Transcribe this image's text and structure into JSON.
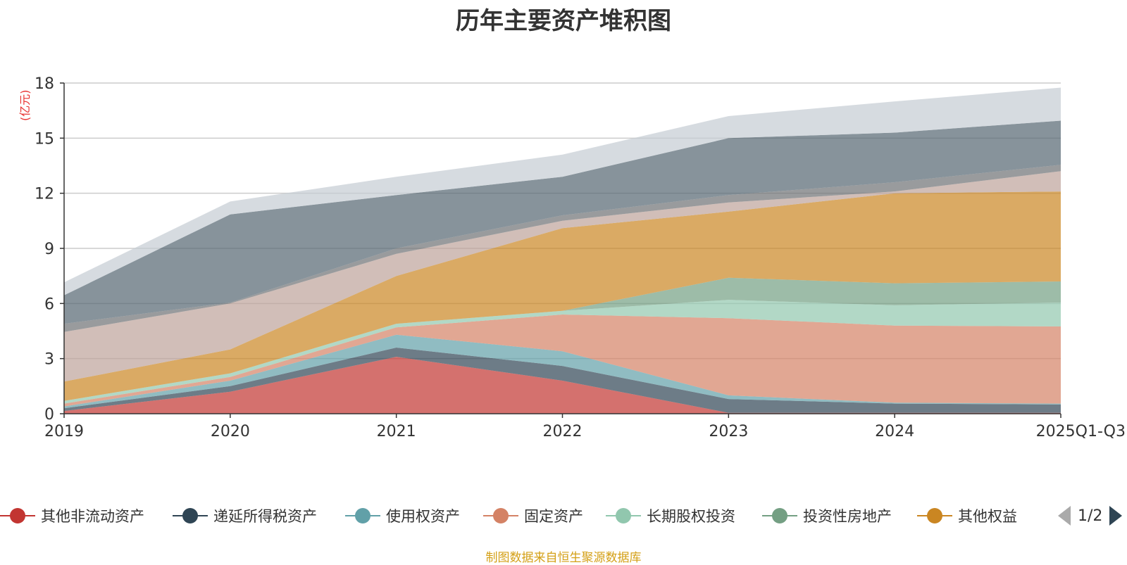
{
  "chart_data": {
    "type": "area",
    "stacked": true,
    "title": "历年主要资产堆积图",
    "unit_label": "(亿元)",
    "categories": [
      "2019",
      "2020",
      "2021",
      "2022",
      "2023",
      "2024",
      "2025Q1-Q3"
    ],
    "ylim": [
      0,
      18
    ],
    "yticks": [
      0,
      3,
      6,
      9,
      12,
      15,
      18
    ],
    "grid": true,
    "series": [
      {
        "name": "其他非流动资产",
        "color": "#c23531",
        "values": [
          0.15,
          1.2,
          3.1,
          1.8,
          0.05,
          0.05,
          0.05
        ],
        "legend": true
      },
      {
        "name": "递延所得税资产",
        "color": "#2f4554",
        "values": [
          0.15,
          0.3,
          0.5,
          0.8,
          0.75,
          0.5,
          0.45
        ],
        "legend": true
      },
      {
        "name": "使用权资产",
        "color": "#61a0a8",
        "values": [
          0.1,
          0.3,
          0.7,
          0.8,
          0.2,
          0.05,
          0.05
        ],
        "legend": true
      },
      {
        "name": "固定资产",
        "color": "#d48265",
        "values": [
          0.15,
          0.2,
          0.4,
          2.0,
          4.2,
          4.2,
          4.2
        ],
        "legend": true
      },
      {
        "name": "长期股权投资",
        "color": "#91c7ae",
        "values": [
          0.15,
          0.2,
          0.2,
          0.2,
          1.0,
          1.1,
          1.3
        ],
        "legend": true
      },
      {
        "name": "投资性房地产",
        "color": "#749f83",
        "values": [
          0.0,
          0.0,
          0.0,
          0.0,
          1.2,
          1.2,
          1.15
        ],
        "legend": true
      },
      {
        "name": "其他权益",
        "color": "#ca8622",
        "values": [
          1.05,
          1.3,
          2.6,
          4.5,
          3.6,
          4.9,
          4.9
        ],
        "legend": true
      },
      {
        "name": "",
        "color": "#bda29a",
        "values": [
          2.7,
          2.5,
          1.2,
          0.4,
          0.5,
          0.1,
          1.1
        ],
        "legend": false
      },
      {
        "name": "",
        "color": "#6e7074",
        "values": [
          0.45,
          0.05,
          0.3,
          0.3,
          0.4,
          0.5,
          0.35
        ],
        "legend": false
      },
      {
        "name": "",
        "color": "#546570",
        "values": [
          1.55,
          4.8,
          2.9,
          2.1,
          3.1,
          2.7,
          2.4
        ],
        "legend": false
      },
      {
        "name": "",
        "color": "#c4ccd3",
        "values": [
          0.7,
          0.7,
          1.0,
          1.2,
          1.2,
          1.7,
          1.8
        ],
        "legend": false
      }
    ]
  },
  "legend": {
    "page_indicator": "1/2"
  },
  "footer": {
    "source_note": "制图数据来自恒生聚源数据库"
  }
}
